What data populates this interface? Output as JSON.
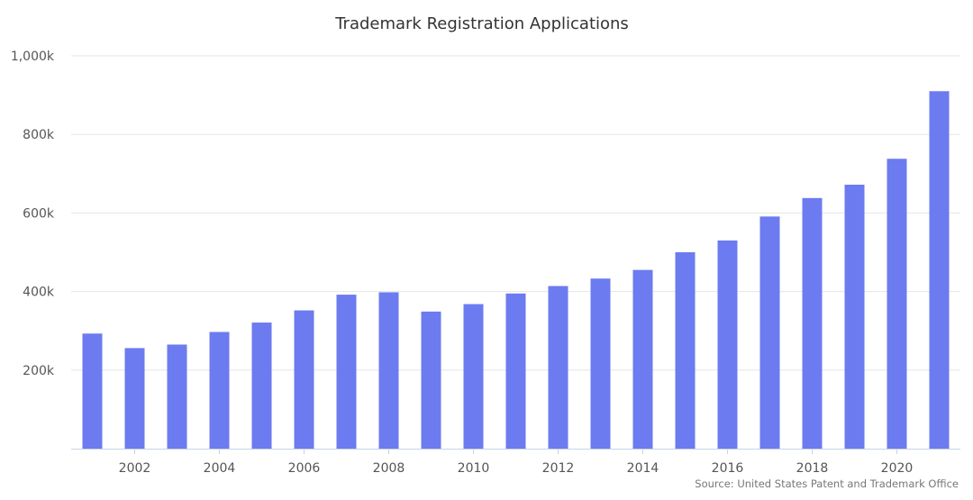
{
  "chart_data": {
    "type": "bar",
    "title": "Trademark Registration Applications",
    "xlabel": "",
    "ylabel": "",
    "categories": [
      2001,
      2002,
      2003,
      2004,
      2005,
      2006,
      2007,
      2008,
      2009,
      2010,
      2011,
      2012,
      2013,
      2014,
      2015,
      2016,
      2017,
      2018,
      2019,
      2020,
      2021
    ],
    "x_tick_labels": [
      "2002",
      "2004",
      "2006",
      "2008",
      "2010",
      "2012",
      "2014",
      "2016",
      "2018",
      "2020"
    ],
    "values": [
      293000,
      256000,
      265000,
      297000,
      321000,
      352000,
      392000,
      398000,
      349000,
      368000,
      395000,
      414000,
      433000,
      455000,
      500000,
      530000,
      591000,
      638000,
      672000,
      738000,
      910000
    ],
    "ylim": [
      0,
      1000000
    ],
    "y_ticks": [
      200000,
      400000,
      600000,
      800000,
      1000000
    ],
    "y_tick_labels": [
      "200k",
      "400k",
      "600k",
      "800k",
      "1,000k"
    ],
    "grid": true,
    "legend": "none",
    "bar_color": "#6c7bef",
    "source": "Source: United States Patent and Trademark Office"
  }
}
